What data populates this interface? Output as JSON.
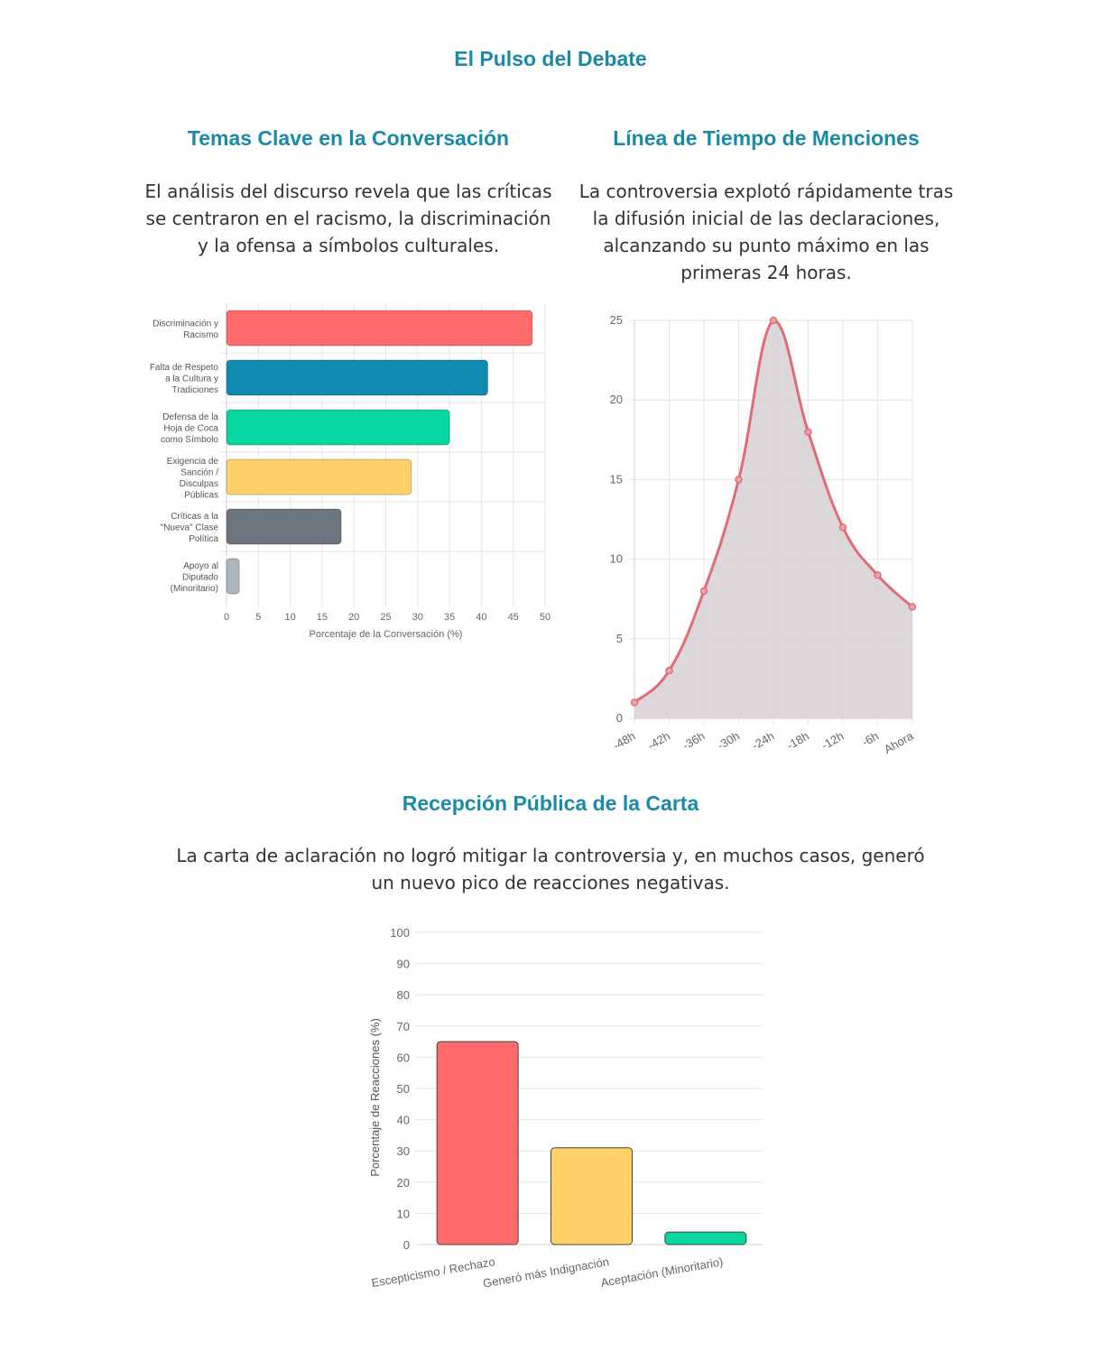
{
  "page": {
    "title": "El Pulso del Debate"
  },
  "sections": {
    "topics": {
      "title": "Temas Clave en la Conversación",
      "description": "El análisis del discurso revela que las críticas se centraron en el racismo, la discriminación y la ofensa a símbolos culturales."
    },
    "timeline": {
      "title": "Línea de Tiempo de Menciones",
      "description": "La controversia explotó rápidamente tras la difusión inicial de las declaraciones, alcanzando su punto máximo en las primeras 24 horas."
    },
    "reception": {
      "title": "Recepción Pública de la Carta",
      "description": "La carta de aclaración no logró mitigar la controversia y, en muchos casos, generó un nuevo pico de reacciones negativas."
    }
  },
  "chart_data": [
    {
      "id": "topics",
      "type": "bar",
      "orientation": "horizontal",
      "categories": [
        [
          "Discriminación y",
          "Racismo"
        ],
        [
          "Falta de Respeto",
          "a la Cultura y",
          "Tradiciones"
        ],
        [
          "Defensa de la",
          "Hoja de Coca",
          "como Símbolo"
        ],
        [
          "Exigencia de",
          "Sanción /",
          "Disculpas",
          "Públicas"
        ],
        [
          "Críticas a la",
          "\"Nueva\" Clase",
          "Política"
        ],
        [
          "Apoyo al",
          "Diputado",
          "(Minoritario)"
        ]
      ],
      "values": [
        48,
        41,
        35,
        29,
        18,
        2
      ],
      "colors": [
        "#ff6b6b",
        "#118ab2",
        "#06d6a0",
        "#ffd166",
        "#6c757d",
        "#adb5bd"
      ],
      "xlabel": "Porcentaje de la Conversación (%)",
      "xlim": [
        0,
        50
      ],
      "xticks": [
        0,
        5,
        10,
        15,
        20,
        25,
        30,
        35,
        40,
        45,
        50
      ],
      "grid": true
    },
    {
      "id": "timeline",
      "type": "area",
      "categories": [
        "-48h",
        "-42h",
        "-36h",
        "-30h",
        "-24h",
        "-18h",
        "-12h",
        "-6h",
        "Ahora"
      ],
      "values": [
        1,
        3,
        8,
        15,
        25,
        18,
        12,
        9,
        7
      ],
      "line_color": "#e06c75",
      "fill_color": "#d7d3d6",
      "ylim": [
        0,
        25
      ],
      "yticks": [
        0,
        5,
        10,
        15,
        20,
        25
      ],
      "grid": true
    },
    {
      "id": "reception",
      "type": "bar",
      "orientation": "vertical",
      "categories": [
        "Escepticismo / Rechazo",
        "Generó más Indignación",
        "Aceptación (Minoritario)"
      ],
      "values": [
        65,
        31,
        4
      ],
      "colors": [
        "#ff6b6b",
        "#ffd166",
        "#06d6a0"
      ],
      "ylabel": "Porcentaje de Reacciones (%)",
      "ylim": [
        0,
        100
      ],
      "yticks": [
        0,
        10,
        20,
        30,
        40,
        50,
        60,
        70,
        80,
        90,
        100
      ],
      "grid": true
    }
  ]
}
